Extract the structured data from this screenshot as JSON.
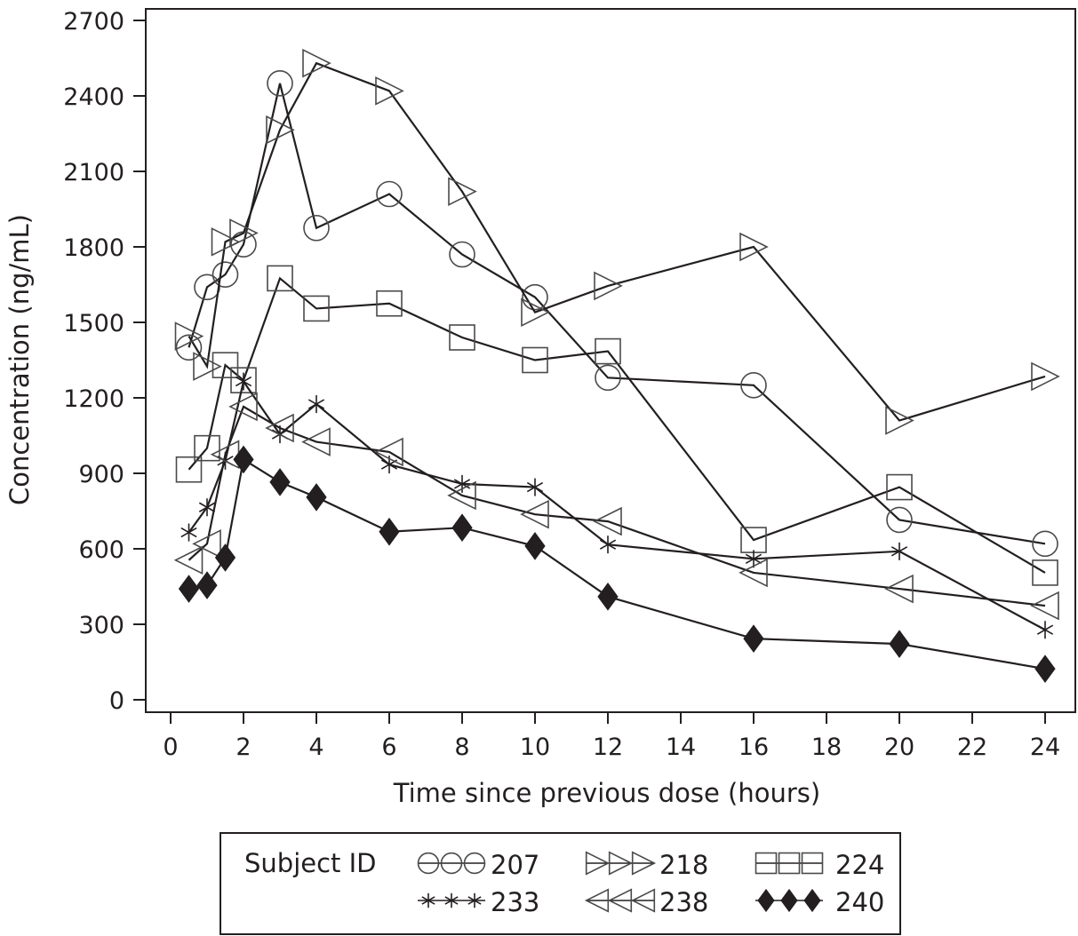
{
  "chart_data": {
    "type": "line",
    "title": "",
    "xlabel": "Time since previous dose (hours)",
    "ylabel": "Concentration (ng/mL)",
    "xlim": [
      0,
      24
    ],
    "ylim": [
      0,
      2700
    ],
    "xticks": [
      "0",
      "2",
      "4",
      "6",
      "8",
      "10",
      "12",
      "14",
      "16",
      "18",
      "20",
      "22",
      "24"
    ],
    "yticks": [
      "0",
      "300",
      "600",
      "900",
      "1200",
      "1500",
      "1800",
      "2100",
      "2400",
      "2700"
    ],
    "grid": false,
    "legend": {
      "title": "Subject ID",
      "placement": "bottom"
    },
    "x": [
      0.5,
      1,
      1.5,
      2,
      3,
      4,
      6,
      8,
      10,
      12,
      16,
      20,
      24
    ],
    "series": [
      {
        "name": "207",
        "marker": "circle-open",
        "values": [
          1400,
          1640,
          1690,
          1810,
          2450,
          1875,
          2010,
          1770,
          1600,
          1280,
          1250,
          715,
          620
        ]
      },
      {
        "name": "218",
        "marker": "triangle-right-open",
        "values": [
          1445,
          1325,
          1820,
          1855,
          2265,
          2530,
          2420,
          2020,
          1540,
          1645,
          1800,
          1110,
          1285
        ]
      },
      {
        "name": "224",
        "marker": "square-open",
        "values": [
          915,
          1000,
          1330,
          1270,
          1675,
          1555,
          1575,
          1440,
          1350,
          1385,
          635,
          845,
          505
        ]
      },
      {
        "name": "233",
        "marker": "asterisk",
        "values": [
          665,
          765,
          950,
          1265,
          1055,
          1175,
          935,
          858,
          845,
          617,
          560,
          590,
          278
        ]
      },
      {
        "name": "238",
        "marker": "triangle-left-open",
        "values": [
          555,
          620,
          975,
          1165,
          1080,
          1025,
          985,
          812,
          737,
          709,
          505,
          441,
          374
        ]
      },
      {
        "name": "240",
        "marker": "diamond-filled",
        "values": [
          441,
          455,
          565,
          955,
          865,
          805,
          668,
          684,
          611,
          410,
          243,
          222,
          123
        ]
      }
    ],
    "colors": {
      "line": "#231f20",
      "marker": "#4a4a4a",
      "background": "#ffffff"
    }
  }
}
